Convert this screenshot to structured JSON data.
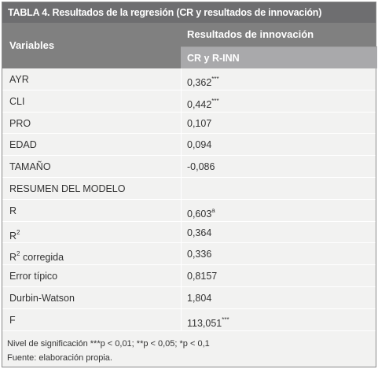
{
  "title": "TABLA 4. Resultados de la regresión (CR y resultados de innovación)",
  "header": {
    "variables": "Variables",
    "group": "Resultados de innovación",
    "subcolumn": "CR y R-INN"
  },
  "rows": [
    {
      "variable": "AYR",
      "var_sup": "",
      "value": "0,362",
      "value_sup": "***"
    },
    {
      "variable": "CLI",
      "var_sup": "",
      "value": "0,442",
      "value_sup": "***"
    },
    {
      "variable": "PRO",
      "var_sup": "",
      "value": "0,107",
      "value_sup": ""
    },
    {
      "variable": "EDAD",
      "var_sup": "",
      "value": "0,094",
      "value_sup": ""
    },
    {
      "variable": "TAMAÑO",
      "var_sup": "",
      "value": "-0,086",
      "value_sup": ""
    },
    {
      "variable": "RESUMEN DEL MODELO",
      "var_sup": "",
      "value": "",
      "value_sup": ""
    },
    {
      "variable": "R",
      "var_sup": "",
      "value": "0,603",
      "value_sup": "a"
    },
    {
      "variable": "R",
      "var_sup": "2",
      "value": "0,364",
      "value_sup": ""
    },
    {
      "variable": "R",
      "var_sup": "2",
      "var_suffix": " corregida",
      "value": "0,336",
      "value_sup": ""
    },
    {
      "variable": "Error típico",
      "var_sup": "",
      "value": "0,8157",
      "value_sup": ""
    },
    {
      "variable": "Durbin-Watson",
      "var_sup": "",
      "value": "1,804",
      "value_sup": ""
    },
    {
      "variable": "F",
      "var_sup": "",
      "value": "113,051",
      "value_sup": "***"
    }
  ],
  "notes": {
    "significance": "Nivel de significación ***p < 0,01; **p < 0,05; *p < 0,1",
    "source": "Fuente: elaboración propia."
  }
}
